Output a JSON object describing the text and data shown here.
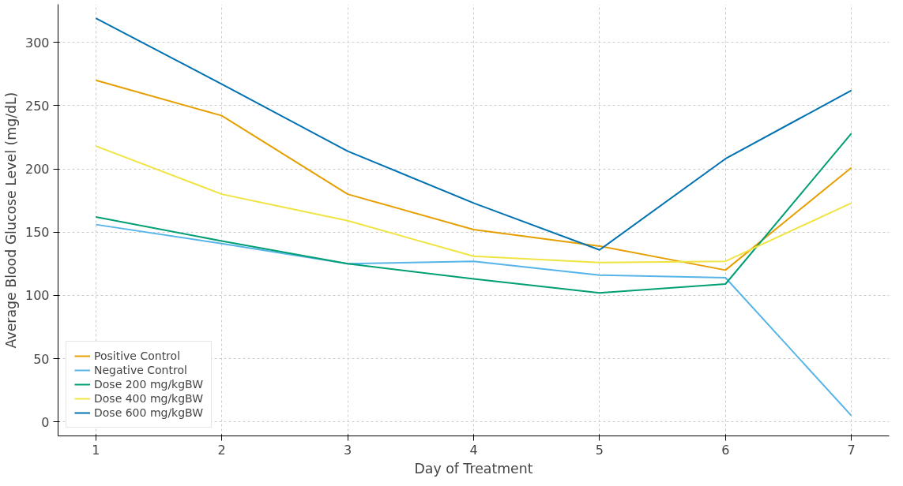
{
  "chart_data": {
    "type": "line",
    "xlabel": "Day of Treatment",
    "ylabel": "Average Blood Glucose Level (mg/dL)",
    "x": [
      1,
      2,
      3,
      4,
      5,
      6,
      7
    ],
    "xlim": [
      0.7,
      7.3
    ],
    "xticks": [
      1,
      2,
      3,
      4,
      5,
      6,
      7
    ],
    "ylim": [
      -11,
      330
    ],
    "yticks": [
      0,
      50,
      100,
      150,
      200,
      250,
      300
    ],
    "grid": true,
    "legend": "bottom left",
    "marker": "none",
    "line_style": "solid",
    "series": [
      {
        "name": "Positive Control",
        "color": "#e69f00",
        "values": [
          270,
          242,
          180,
          152,
          139,
          120,
          201
        ]
      },
      {
        "name": "Negative Control",
        "color": "#56b4e9",
        "values": [
          156,
          141,
          125,
          127,
          116,
          114,
          5
        ]
      },
      {
        "name": "Dose 200 mg/kgBW",
        "color": "#009e73",
        "values": [
          162,
          143,
          125,
          113,
          102,
          109,
          228
        ]
      },
      {
        "name": "Dose 400 mg/kgBW",
        "color": "#f0e442",
        "values": [
          218,
          180,
          159,
          131,
          126,
          127,
          173
        ]
      },
      {
        "name": "Dose 600 mg/kgBW",
        "color": "#0072b2",
        "values": [
          319,
          267,
          214,
          173,
          136,
          208,
          262
        ]
      }
    ]
  }
}
